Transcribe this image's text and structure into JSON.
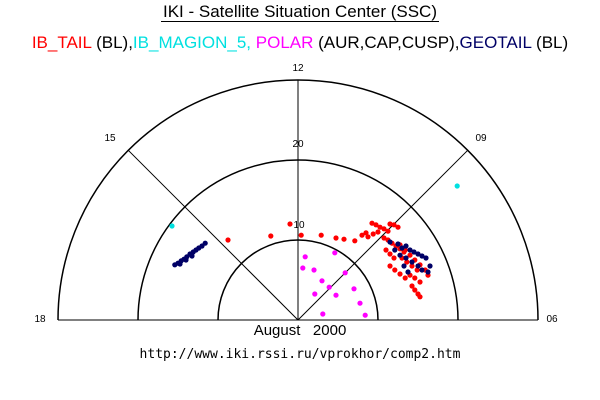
{
  "title": "IKI - Satellite Situation Center (SSC)",
  "legend": [
    {
      "name": "IB_TAIL",
      "suffix": " (BL),",
      "color": "#ff0000"
    },
    {
      "name": "IB_MAGION_5,",
      "suffix": " ",
      "color": "#00e0e0"
    },
    {
      "name": "POLAR",
      "suffix": " (AUR,CAP,CUSP),",
      "color": "#ff00ff"
    },
    {
      "name": "GEOTAIL",
      "suffix": " (BL)",
      "color": "#000066"
    }
  ],
  "footer": {
    "month": "August",
    "year": "2000",
    "url": "http://www.iki.rssi.ru/vprokhor/comp2.htm"
  },
  "chart_data": {
    "type": "scatter",
    "projection": "polar half-disk (MLT dial, dayside)",
    "mlt_labels": [
      "18",
      "15",
      "12",
      "09",
      "06"
    ],
    "radial_labels": [
      "10",
      "20"
    ],
    "radial_circles": [
      10,
      20,
      30
    ],
    "rmax": 30,
    "note": "points given as cartesian data units (x toward 06 MLT, y toward 12 MLT), radius units as on rings",
    "series": [
      {
        "name": "IB_TAIL",
        "color": "#ff0000",
        "points": [
          [
            -1.0,
            12.0
          ],
          [
            -8.75,
            10.0
          ],
          [
            -3.4,
            10.5
          ],
          [
            0.4,
            10.6
          ],
          [
            2.9,
            10.6
          ],
          [
            4.75,
            10.25
          ],
          [
            5.75,
            10.1
          ],
          [
            7.1,
            9.9
          ],
          [
            8.0,
            10.6
          ],
          [
            8.5,
            10.9
          ],
          [
            8.75,
            10.4
          ],
          [
            9.25,
            12.1
          ],
          [
            9.75,
            11.9
          ],
          [
            10.25,
            11.6
          ],
          [
            10.75,
            11.4
          ],
          [
            11.25,
            11.1
          ],
          [
            11.5,
            12.0
          ],
          [
            12.0,
            11.9
          ],
          [
            12.5,
            11.6
          ],
          [
            9.4,
            10.75
          ],
          [
            10.0,
            11.0
          ],
          [
            10.75,
            10.25
          ],
          [
            11.25,
            10.0
          ],
          [
            11.75,
            9.6
          ],
          [
            12.25,
            9.25
          ],
          [
            12.75,
            8.9
          ],
          [
            13.25,
            8.5
          ],
          [
            12.75,
            9.4
          ],
          [
            13.4,
            8.75
          ],
          [
            14.0,
            8.1
          ],
          [
            14.6,
            7.5
          ],
          [
            15.25,
            6.9
          ],
          [
            15.9,
            6.25
          ],
          [
            16.25,
            5.6
          ],
          [
            13.0,
            7.75
          ],
          [
            13.6,
            7.25
          ],
          [
            14.25,
            6.75
          ],
          [
            14.9,
            6.25
          ],
          [
            11.5,
            6.75
          ],
          [
            12.1,
            6.25
          ],
          [
            12.75,
            5.75
          ],
          [
            13.4,
            5.25
          ],
          [
            14.25,
            4.25
          ],
          [
            14.6,
            3.75
          ],
          [
            15.0,
            3.25
          ],
          [
            15.25,
            2.9
          ],
          [
            14.0,
            5.6
          ],
          [
            14.6,
            5.25
          ],
          [
            15.25,
            4.75
          ],
          [
            11.0,
            8.75
          ],
          [
            11.5,
            8.25
          ],
          [
            12.0,
            7.75
          ]
        ]
      },
      {
        "name": "IB_MAGION_5",
        "color": "#00e0e0",
        "points": [
          [
            -15.75,
            11.75
          ],
          [
            19.9,
            16.75
          ]
        ]
      },
      {
        "name": "POLAR",
        "color": "#ff00ff",
        "points": [
          [
            0.9,
            7.9
          ],
          [
            0.6,
            6.5
          ],
          [
            2.0,
            6.25
          ],
          [
            4.6,
            8.4
          ],
          [
            5.9,
            5.9
          ],
          [
            3.0,
            4.9
          ],
          [
            3.9,
            4.1
          ],
          [
            2.1,
            3.25
          ],
          [
            4.75,
            3.1
          ],
          [
            7.0,
            3.9
          ],
          [
            7.75,
            2.1
          ],
          [
            3.1,
            0.75
          ],
          [
            8.4,
            0.6
          ]
        ]
      },
      {
        "name": "GEOTAIL",
        "color": "#000066",
        "points": [
          [
            11.5,
            9.75
          ],
          [
            12.5,
            9.5
          ],
          [
            13.0,
            9.0
          ],
          [
            13.5,
            9.25
          ],
          [
            14.0,
            8.75
          ],
          [
            14.5,
            8.5
          ],
          [
            15.0,
            8.25
          ],
          [
            15.5,
            8.0
          ],
          [
            16.0,
            7.75
          ],
          [
            13.5,
            7.75
          ],
          [
            14.25,
            7.25
          ],
          [
            15.0,
            6.75
          ],
          [
            15.5,
            6.25
          ],
          [
            16.25,
            6.0
          ],
          [
            13.25,
            6.75
          ],
          [
            13.75,
            6.0
          ],
          [
            16.5,
            6.75
          ],
          [
            12.1,
            8.75
          ],
          [
            12.75,
            8.1
          ],
          [
            -15.4,
            6.9
          ],
          [
            -15.0,
            7.1
          ],
          [
            -14.6,
            7.4
          ],
          [
            -14.25,
            7.6
          ],
          [
            -13.9,
            7.9
          ],
          [
            -13.5,
            8.25
          ],
          [
            -13.1,
            8.5
          ],
          [
            -12.75,
            8.75
          ],
          [
            -12.4,
            9.0
          ],
          [
            -12.0,
            9.25
          ],
          [
            -11.6,
            9.6
          ],
          [
            -14.75,
            7.0
          ],
          [
            -14.0,
            7.5
          ],
          [
            -13.25,
            8.0
          ]
        ]
      }
    ]
  }
}
